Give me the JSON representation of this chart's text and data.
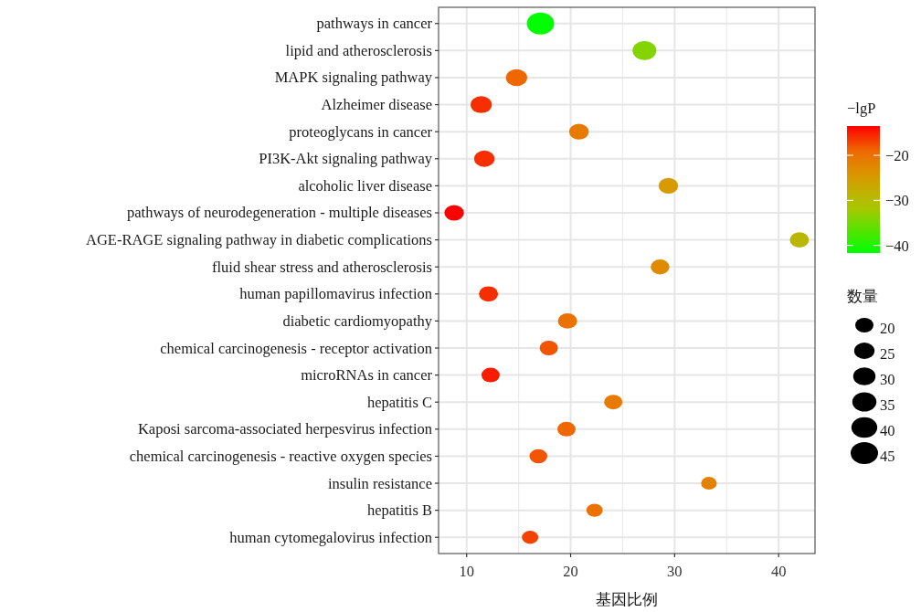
{
  "chart_data": {
    "type": "bubble",
    "xlabel": "基因比例",
    "clabel": "−lgP",
    "legend_title": "数量",
    "categories": [
      "pathways in cancer",
      "lipid and atherosclerosis",
      "MAPK signaling pathway",
      "Alzheimer disease",
      "proteoglycans in cancer",
      "PI3K-Akt signaling pathway",
      "alcoholic liver disease",
      "pathways of neurodegeneration - multiple diseases",
      "AGE-RAGE signaling pathway in diabetic complications",
      "fluid shear stress and atherosclerosis",
      "human papillomavirus infection",
      "diabetic cardiomyopathy",
      "chemical carcinogenesis - receptor activation",
      "microRNAs in cancer",
      "hepatitis C",
      "Kaposi sarcoma-associated herpesvirus infection",
      "chemical carcinogenesis - reactive oxygen species",
      "insulin resistance",
      "hepatitis B",
      "human cytomegalovirus infection"
    ],
    "values": [
      17.1,
      27.1,
      14.8,
      11.4,
      20.8,
      11.7,
      29.4,
      8.8,
      42.0,
      28.6,
      12.1,
      19.7,
      17.9,
      12.3,
      24.1,
      19.6,
      16.9,
      33.3,
      22.3,
      16.1
    ],
    "sizes": [
      45,
      34,
      27,
      27,
      23,
      25,
      23,
      23,
      22,
      21,
      22,
      22,
      20,
      20,
      20,
      20,
      19,
      15,
      16,
      16
    ],
    "cvalues": [
      -41.7,
      -34,
      -19,
      -16,
      -21,
      -16,
      -25,
      -13.5,
      -29,
      -23,
      -16,
      -20,
      -18,
      -15,
      -21,
      -19,
      -18,
      -22,
      -20,
      -17
    ],
    "size_legend": [
      20,
      25,
      30,
      35,
      40,
      45
    ],
    "clim": [
      -41.7,
      -13.5
    ],
    "cticks": [
      -20,
      -30,
      -40
    ],
    "xlim": [
      7.3,
      43.5
    ],
    "xticks": [
      10,
      20,
      30,
      40
    ],
    "grid": true,
    "orientation": "horizontal"
  }
}
